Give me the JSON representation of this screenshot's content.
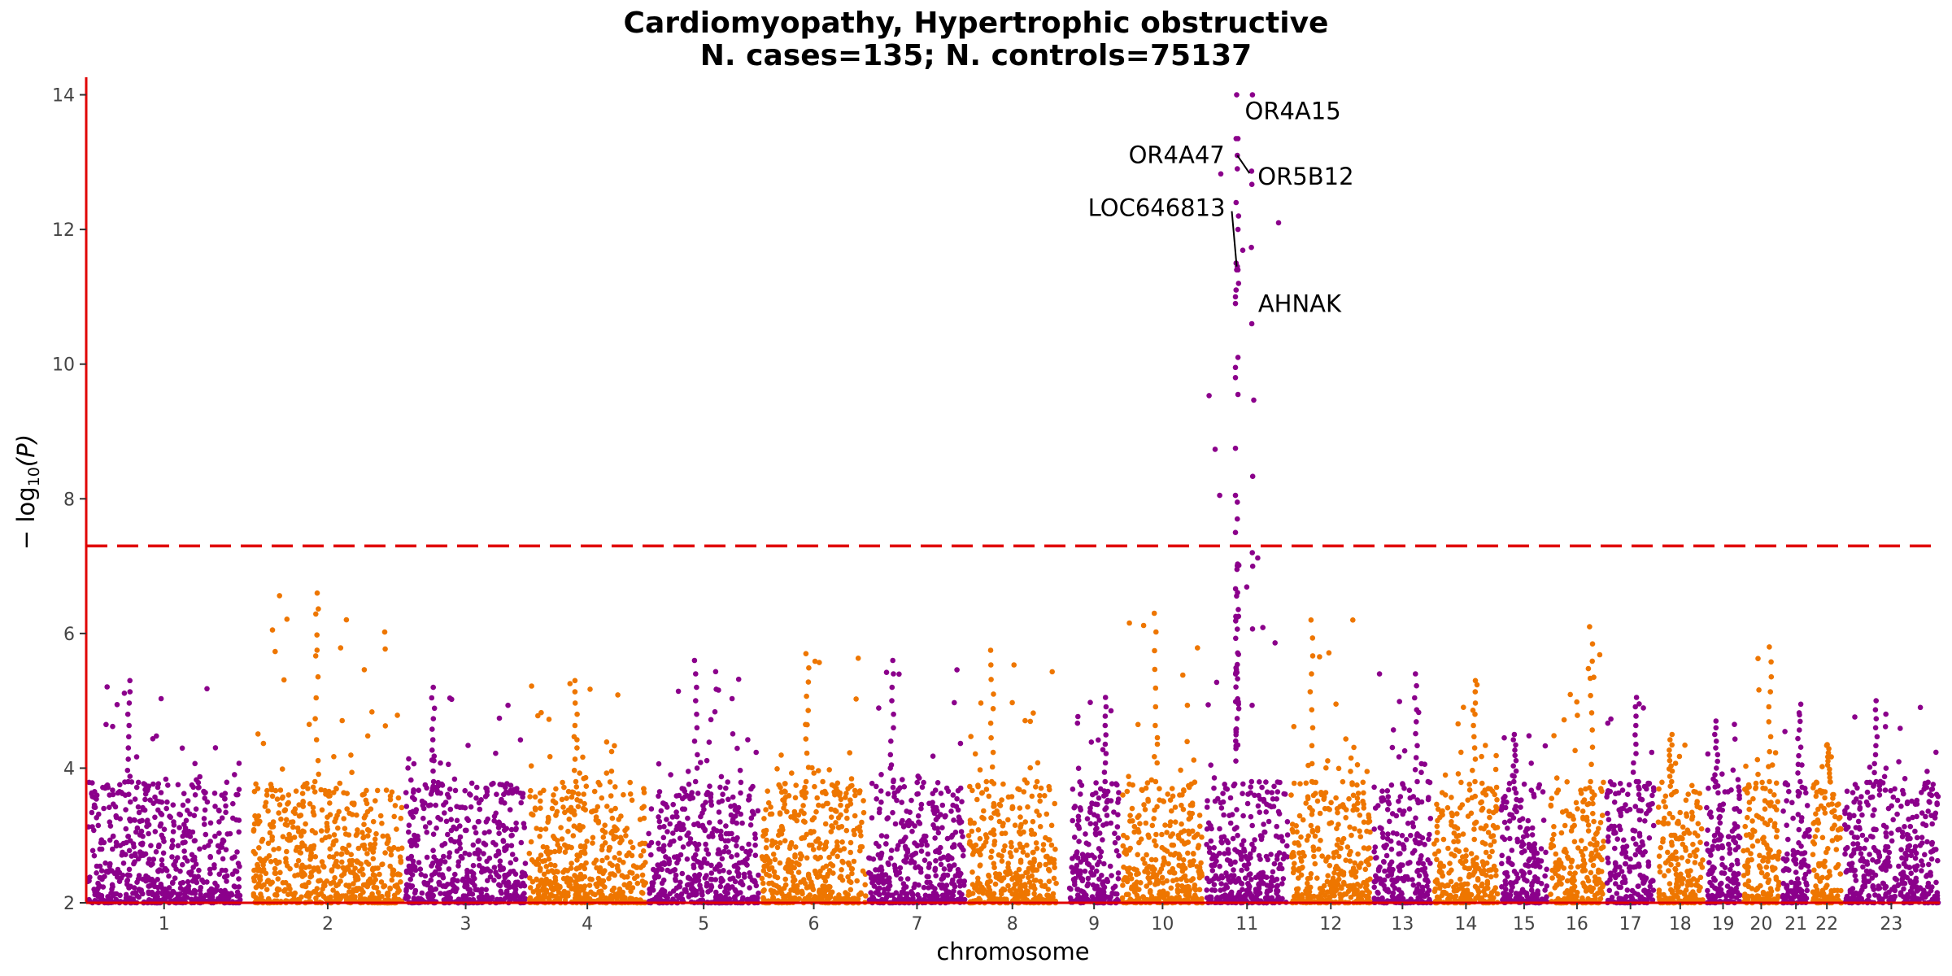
{
  "chart_data": {
    "type": "scatter",
    "title": "Cardiomyopathy, Hypertrophic obstructive",
    "subtitle": "N. cases=135; N. controls=75137",
    "xlabel": "chromosome",
    "ylabel_prefix": "− log",
    "ylabel_sub": "10",
    "ylabel_suffix": "(P)",
    "ylim": [
      2,
      14.2
    ],
    "yticks": [
      2,
      4,
      6,
      8,
      10,
      12,
      14
    ],
    "significance_line": 7.3,
    "colors": {
      "odd": "#8b008b",
      "even": "#ee7600",
      "axis": "#e00000",
      "threshold": "#e00000"
    },
    "chromosomes": [
      {
        "label": "1",
        "length": 249,
        "peak": 5.3
      },
      {
        "label": "2",
        "length": 243,
        "peak": 6.6
      },
      {
        "label": "3",
        "length": 198,
        "peak": 5.2
      },
      {
        "label": "4",
        "length": 191,
        "peak": 5.3
      },
      {
        "label": "5",
        "length": 181,
        "peak": 5.6
      },
      {
        "label": "6",
        "length": 171,
        "peak": 5.7
      },
      {
        "label": "7",
        "length": 159,
        "peak": 5.6
      },
      {
        "label": "8",
        "length": 146,
        "peak": 5.75
      },
      {
        "label": "9",
        "length": 84,
        "peak": 5.05
      },
      {
        "label": "10",
        "length": 135,
        "peak": 6.3
      },
      {
        "label": "11",
        "length": 135,
        "peak": 14.0
      },
      {
        "label": "12",
        "length": 133,
        "peak": 6.2
      },
      {
        "label": "13",
        "length": 96,
        "peak": 5.4
      },
      {
        "label": "14",
        "length": 107,
        "peak": 5.3
      },
      {
        "label": "15",
        "length": 79,
        "peak": 4.5
      },
      {
        "label": "16",
        "length": 90,
        "peak": 6.1
      },
      {
        "label": "17",
        "length": 81,
        "peak": 5.05
      },
      {
        "label": "18",
        "length": 78,
        "peak": 4.5
      },
      {
        "label": "19",
        "length": 59,
        "peak": 4.7
      },
      {
        "label": "20",
        "length": 63,
        "peak": 5.8
      },
      {
        "label": "21",
        "length": 48,
        "peak": 4.95
      },
      {
        "label": "22",
        "length": 51,
        "peak": 4.35
      },
      {
        "label": "23",
        "length": 155,
        "peak": 5.0
      }
    ],
    "gaps_after": [
      1,
      8
    ],
    "top_hits": [
      {
        "chrom": "11",
        "pos": 51,
        "p": 14.0
      },
      {
        "chrom": "11",
        "pos": 50,
        "p": 13.35
      },
      {
        "chrom": "11",
        "pos": 53,
        "p": 13.35
      },
      {
        "chrom": "11",
        "pos": 52,
        "p": 13.1
      },
      {
        "chrom": "11",
        "pos": 52,
        "p": 12.9
      },
      {
        "chrom": "11",
        "pos": 50,
        "p": 12.4
      },
      {
        "chrom": "11",
        "pos": 54,
        "p": 12.2
      },
      {
        "chrom": "11",
        "pos": 53,
        "p": 12.0
      },
      {
        "chrom": "11",
        "pos": 50,
        "p": 11.5
      },
      {
        "chrom": "11",
        "pos": 51,
        "p": 11.4
      },
      {
        "chrom": "11",
        "pos": 52,
        "p": 11.45
      },
      {
        "chrom": "11",
        "pos": 53,
        "p": 11.4
      },
      {
        "chrom": "11",
        "pos": 54,
        "p": 11.2
      },
      {
        "chrom": "11",
        "pos": 50,
        "p": 11.1
      },
      {
        "chrom": "11",
        "pos": 49,
        "p": 10.9
      },
      {
        "chrom": "11",
        "pos": 49,
        "p": 11.0
      },
      {
        "chrom": "11",
        "pos": 53,
        "p": 10.1
      },
      {
        "chrom": "11",
        "pos": 49,
        "p": 9.95
      },
      {
        "chrom": "11",
        "pos": 49,
        "p": 9.8
      },
      {
        "chrom": "11",
        "pos": 53,
        "p": 9.55
      },
      {
        "chrom": "11",
        "pos": 49,
        "p": 8.75
      },
      {
        "chrom": "11",
        "pos": 49,
        "p": 8.05
      },
      {
        "chrom": "11",
        "pos": 52,
        "p": 7.95
      },
      {
        "chrom": "11",
        "pos": 52,
        "p": 7.7
      },
      {
        "chrom": "11",
        "pos": 49,
        "p": 7.5
      }
    ],
    "annotations": [
      {
        "label": "OR4A15",
        "chrom": "11",
        "pos": 51,
        "p": 14.0
      },
      {
        "label": "OR4A47",
        "chrom": "11",
        "pos": 50,
        "p": 13.35
      },
      {
        "label": "OR5B12",
        "chrom": "11",
        "pos": 52,
        "p": 13.1
      },
      {
        "label": "LOC646813",
        "chrom": "11",
        "pos": 51,
        "p": 11.45
      },
      {
        "label": "AHNAK",
        "chrom": "11",
        "pos": 54,
        "p": 11.2
      }
    ]
  }
}
